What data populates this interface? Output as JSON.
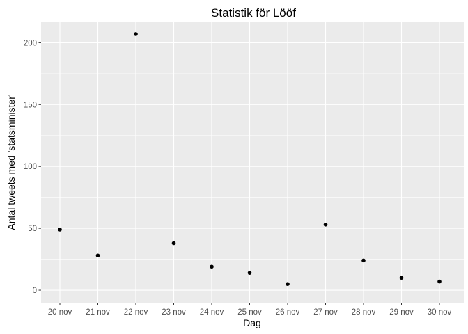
{
  "chart_data": {
    "type": "scatter",
    "title": "Statistik för Lööf",
    "xlabel": "Dag",
    "ylabel": "Antal tweets med 'statsminister'",
    "categories": [
      "20 nov",
      "21 nov",
      "22 nov",
      "23 nov",
      "24 nov",
      "25 nov",
      "26 nov",
      "27 nov",
      "28 nov",
      "29 nov",
      "30 nov"
    ],
    "values": [
      49,
      28,
      207,
      38,
      19,
      14,
      5,
      53,
      24,
      10,
      7
    ],
    "ylim": [
      -10.1,
      217.1
    ],
    "yticks": [
      0,
      50,
      100,
      150,
      200
    ],
    "ytick_labels": [
      "0",
      "50",
      "100",
      "150",
      "200"
    ],
    "grid": true,
    "legend": "none",
    "colors": {
      "panel_background": "#ebebeb",
      "grid_major": "#ffffff",
      "point": "#000000",
      "tick_label": "#4d4d4d",
      "text": "#000000"
    }
  }
}
